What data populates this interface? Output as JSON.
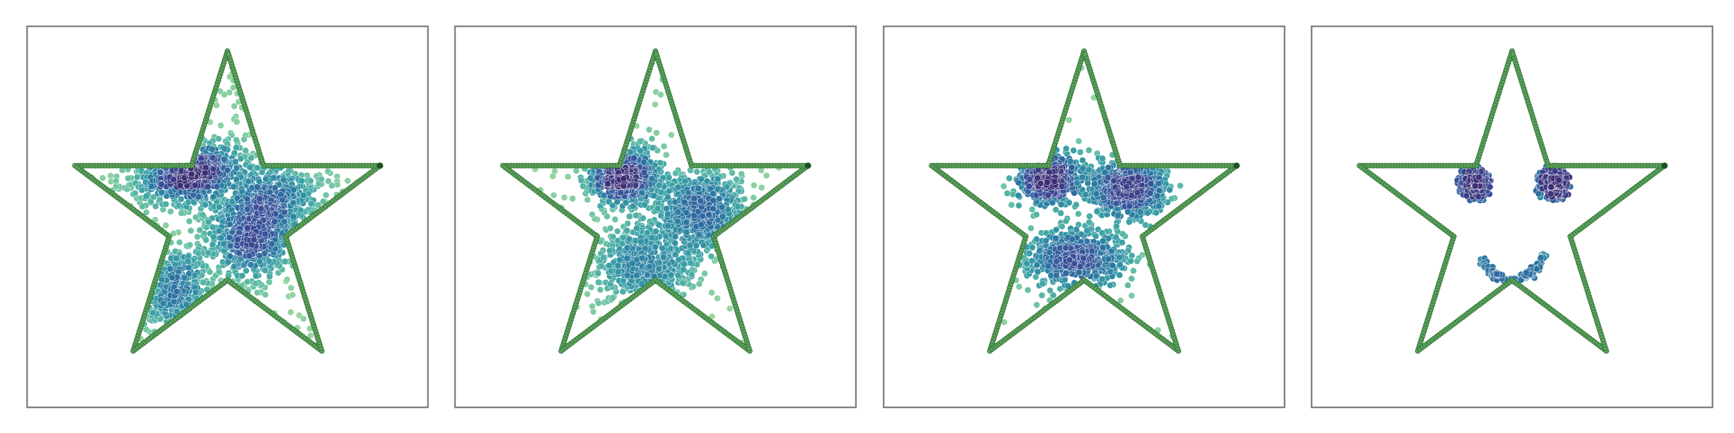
{
  "figure": {
    "panel_count": 4,
    "axes_visible": false,
    "grid": false,
    "legend": "none",
    "colors": {
      "outline_point": "#5aa15a",
      "outline_edge": "#2f6b34",
      "colormap": [
        "#a6dba0",
        "#6cc3a4",
        "#3aa1a6",
        "#2a7aa3",
        "#3a4f9a",
        "#3c2c73"
      ],
      "frame": "#808080"
    }
  },
  "chart_data": [
    {
      "type": "scatter",
      "name_hint": "panel-1",
      "xlim": [
        -1.25,
        1.25
      ],
      "ylim": [
        -1.15,
        1.15
      ],
      "outline": {
        "shape": "star",
        "outer_radius": 1.0,
        "inner_radius": 0.382,
        "points_per_edge": 40
      },
      "samples": {
        "n": 2300,
        "clusters": [
          {
            "x": -0.25,
            "y": 0.27,
            "sx": 0.16,
            "sy": 0.09,
            "weight": 0.25
          },
          {
            "x": 0.28,
            "y": 0.12,
            "sx": 0.18,
            "sy": 0.12,
            "weight": 0.18
          },
          {
            "x": 0.15,
            "y": -0.15,
            "sx": 0.14,
            "sy": 0.12,
            "weight": 0.18
          },
          {
            "x": -0.35,
            "y": -0.45,
            "sx": 0.12,
            "sy": 0.13,
            "weight": 0.14
          }
        ],
        "uniform_fraction": 0.25,
        "density_scale": 0.7
      }
    },
    {
      "type": "scatter",
      "name_hint": "panel-2",
      "xlim": [
        -1.25,
        1.25
      ],
      "ylim": [
        -1.15,
        1.15
      ],
      "outline": {
        "shape": "star",
        "outer_radius": 1.0,
        "inner_radius": 0.382,
        "points_per_edge": 40
      },
      "samples": {
        "n": 2000,
        "clusters": [
          {
            "x": -0.2,
            "y": 0.25,
            "sx": 0.11,
            "sy": 0.08,
            "weight": 0.32
          },
          {
            "x": 0.3,
            "y": 0.05,
            "sx": 0.14,
            "sy": 0.12,
            "weight": 0.3
          },
          {
            "x": -0.05,
            "y": -0.3,
            "sx": 0.16,
            "sy": 0.13,
            "weight": 0.25
          }
        ],
        "uniform_fraction": 0.13,
        "density_scale": 0.55
      }
    },
    {
      "type": "scatter",
      "name_hint": "panel-3",
      "xlim": [
        -1.25,
        1.25
      ],
      "ylim": [
        -1.15,
        1.15
      ],
      "outline": {
        "shape": "star",
        "outer_radius": 1.0,
        "inner_radius": 0.382,
        "points_per_edge": 40
      },
      "samples": {
        "n": 1800,
        "clusters": [
          {
            "x": -0.22,
            "y": 0.23,
            "sx": 0.09,
            "sy": 0.07,
            "weight": 0.3
          },
          {
            "x": 0.27,
            "y": 0.18,
            "sx": 0.12,
            "sy": 0.09,
            "weight": 0.35
          },
          {
            "x": -0.05,
            "y": -0.25,
            "sx": 0.16,
            "sy": 0.09,
            "weight": 0.3
          }
        ],
        "uniform_fraction": 0.05,
        "density_scale": 0.45
      }
    },
    {
      "type": "scatter",
      "name_hint": "panel-4",
      "xlim": [
        -1.25,
        1.25
      ],
      "ylim": [
        -1.15,
        1.15
      ],
      "outline": {
        "shape": "star",
        "outer_radius": 1.0,
        "inner_radius": 0.382,
        "points_per_edge": 40
      },
      "samples": {
        "n": 700,
        "clusters": [
          {
            "x": -0.23,
            "y": 0.2,
            "sx": 0.035,
            "sy": 0.035,
            "weight": 0.3
          },
          {
            "x": 0.26,
            "y": 0.2,
            "sx": 0.035,
            "sy": 0.035,
            "weight": 0.3
          }
        ],
        "rings": [
          {
            "x": -0.24,
            "y": 0.2,
            "r": 0.09,
            "weight": 0.1
          },
          {
            "x": 0.25,
            "y": 0.2,
            "r": 0.09,
            "weight": 0.1
          }
        ],
        "arcs": [
          {
            "x": 0.0,
            "y": -0.18,
            "r": 0.2,
            "from_deg": 200,
            "to_deg": 350,
            "weight": 0.2
          }
        ],
        "uniform_fraction": 0.0,
        "density_scale": 0.3
      }
    }
  ]
}
